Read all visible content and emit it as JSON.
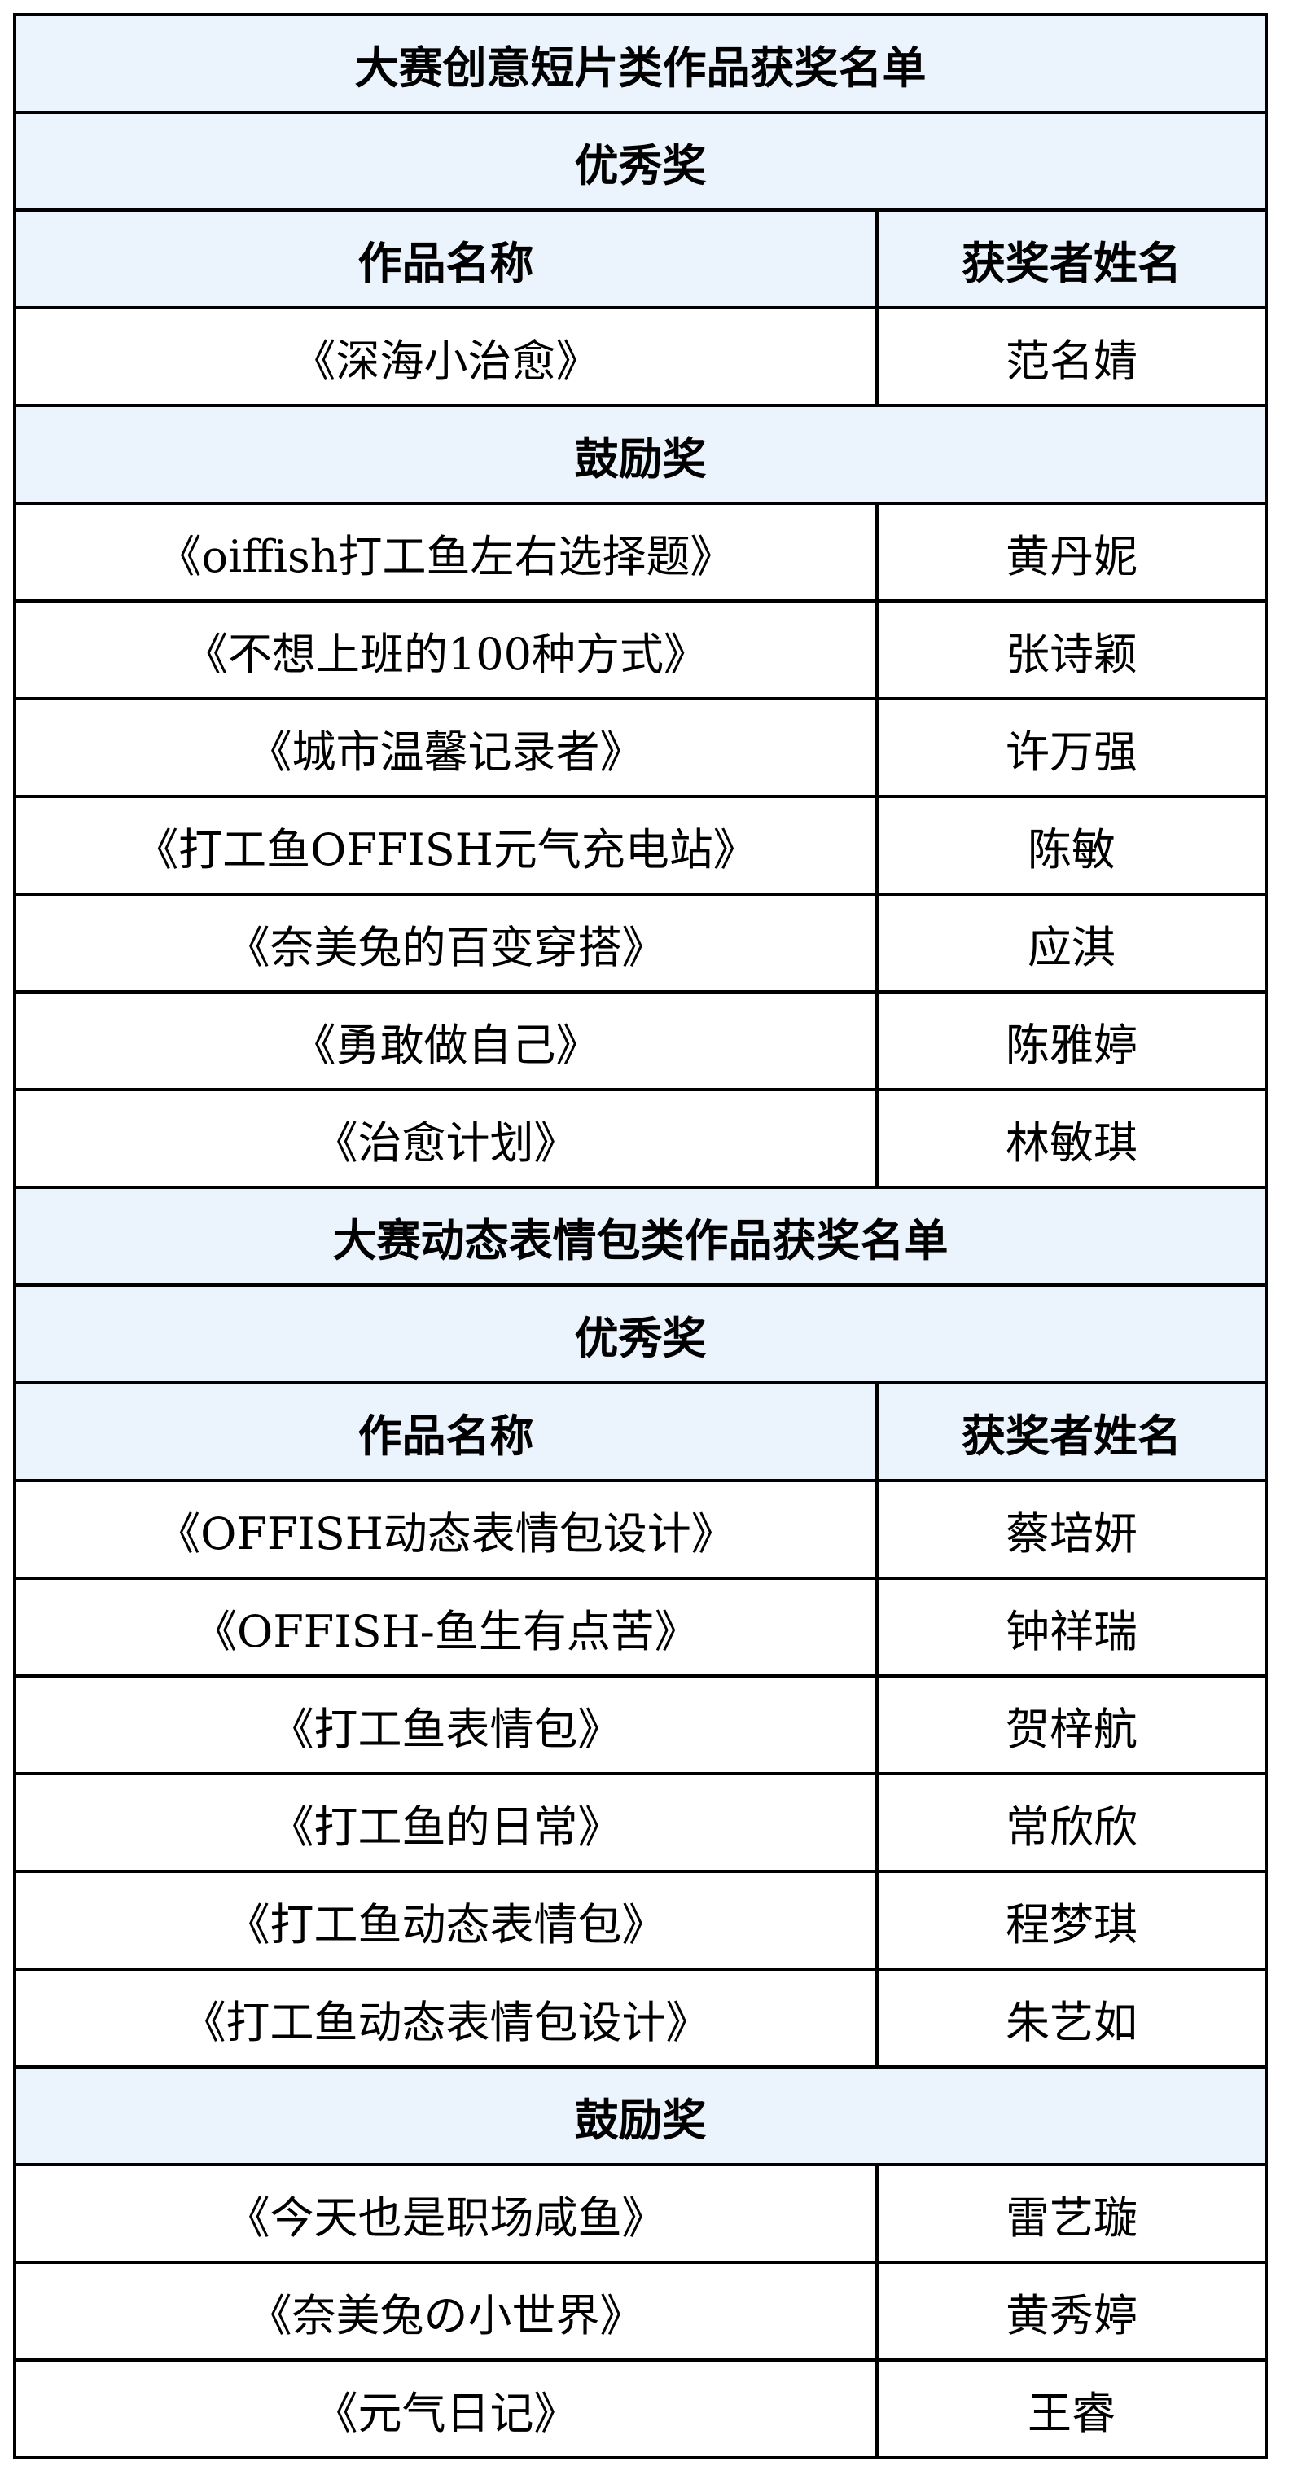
{
  "sections": [
    {
      "title": "大赛创意短片类作品获奖名单",
      "groups": [
        {
          "award": "优秀奖",
          "headers": [
            "作品名称",
            "获奖者姓名"
          ],
          "rows": [
            [
              "《深海小治愈》",
              "范名婧"
            ]
          ]
        },
        {
          "award": "鼓励奖",
          "rows": [
            [
              "《oiffish打工鱼左右选择题》",
              "黄丹妮"
            ],
            [
              "《不想上班的100种方式》",
              "张诗颖"
            ],
            [
              "《城市温馨记录者》",
              "许万强"
            ],
            [
              "《打工鱼OFFISH元气充电站》",
              "陈敏"
            ],
            [
              "《奈美兔的百变穿搭》",
              "应淇"
            ],
            [
              "《勇敢做自己》",
              "陈雅婷"
            ],
            [
              "《治愈计划》",
              "林敏琪"
            ]
          ]
        }
      ]
    },
    {
      "title": "大赛动态表情包类作品获奖名单",
      "groups": [
        {
          "award": "优秀奖",
          "headers": [
            "作品名称",
            "获奖者姓名"
          ],
          "rows": [
            [
              "《OFFISH动态表情包设计》",
              "蔡培妍"
            ],
            [
              "《OFFISH-鱼生有点苦》",
              "钟祥瑞"
            ],
            [
              "《打工鱼表情包》",
              "贺梓航"
            ],
            [
              "《打工鱼的日常》",
              "常欣欣"
            ],
            [
              "《打工鱼动态表情包》",
              "程梦琪"
            ],
            [
              "《打工鱼动态表情包设计》",
              "朱艺如"
            ]
          ]
        },
        {
          "award": "鼓励奖",
          "rows": [
            [
              "《今天也是职场咸鱼》",
              "雷艺璇"
            ],
            [
              "《奈美兔の小世界》",
              "黄秀婷"
            ],
            [
              "《元气日记》",
              "王睿"
            ]
          ]
        }
      ]
    }
  ],
  "colors": {
    "header_fill": "#ebf3fc",
    "border": "#000000"
  }
}
